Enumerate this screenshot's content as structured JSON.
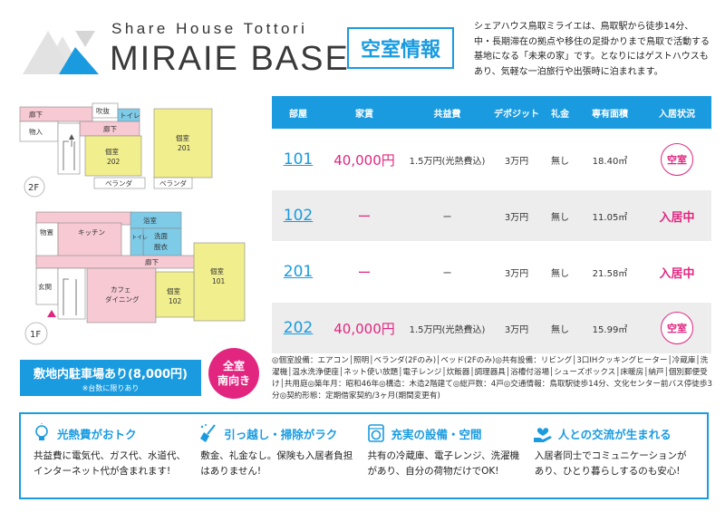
{
  "header": {
    "brand_sub": "Share House Tottori",
    "brand_main": "MIRAIE BASE",
    "vacancy_title": "空室情報",
    "intro": "シェアハウス鳥取ミライエは、鳥取駅から徒歩14分、中・長期滞在の拠点や移住の足掛かりまで鳥取で活動する基地になる「未来の家」です。となりにはゲストハウスもあり、気軽な一泊旅行や出張時に泊まれます。"
  },
  "floorplan": {
    "floor2": {
      "label": "2F",
      "rooms": [
        "廊下",
        "吹抜",
        "トイレ",
        "廊下",
        "物入",
        "個室",
        "202",
        "個室",
        "201",
        "ベランダ",
        "ベランダ"
      ]
    },
    "floor1": {
      "label": "1F",
      "rooms": [
        "廊下",
        "浴室",
        "物置",
        "キッチン",
        "洗面",
        "脱衣",
        "トイレ",
        "廊下",
        "個室",
        "101",
        "玄関",
        "カフェ",
        "ダイニング",
        "個室",
        "102"
      ]
    }
  },
  "table": {
    "headers": [
      "部屋",
      "家賃",
      "共益費",
      "デポジット",
      "礼金",
      "専有面積",
      "入居状況"
    ],
    "rows": [
      {
        "room": "101",
        "rent": "40,000円",
        "fee": "1.5万円(光熱費込)",
        "deposit": "3万円",
        "key_money": "無し",
        "area": "18.40㎡",
        "status": "空室",
        "vacant": true
      },
      {
        "room": "102",
        "rent": "ー",
        "fee": "ー",
        "deposit": "3万円",
        "key_money": "無し",
        "area": "11.05㎡",
        "status": "入居中",
        "vacant": false
      },
      {
        "room": "201",
        "rent": "ー",
        "fee": "ー",
        "deposit": "3万円",
        "key_money": "無し",
        "area": "21.58㎡",
        "status": "入居中",
        "vacant": false
      },
      {
        "room": "202",
        "rent": "40,000円",
        "fee": "1.5万円(光熱費込)",
        "deposit": "3万円",
        "key_money": "無し",
        "area": "15.99㎡",
        "status": "空室",
        "vacant": true
      }
    ]
  },
  "parking": {
    "line1": "敷地内駐車場あり(8,000円)",
    "line2": "※台数に限りあり"
  },
  "orientation": {
    "line1": "全室",
    "line2": "南向き"
  },
  "equipment": "◎個室設備：エアコン│照明│ベランダ(2Fのみ)│ベッド(2Fのみ)◎共有設備：リビング│3口IHクッキングヒーター│冷蔵庫│洗濯機│温水洗浄便座│ネット使い放題│電子レンジ│炊飯器│調理器具│浴槽付浴場│シューズボックス│床暖房│納戸│個別郵便受け│共用庭◎築年月：昭和46年◎構造：木造2階建て◎総戸数：4戸◎交通情報：鳥取駅徒歩14分、文化センター前バス停徒歩3分◎契約形態：定期借家契約/3ヶ月(期間変更有)",
  "features": [
    {
      "icon": "lightbulb-icon",
      "title": "光熱費がおトク",
      "text": "共益費に電気代、ガス代、水道代、インターネット代が含まれます!"
    },
    {
      "icon": "broom-icon",
      "title": "引っ越し・掃除がラク",
      "text": "敷金、礼金なし。保険も入居者負担はありません!"
    },
    {
      "icon": "washing-machine-icon",
      "title": "充実の設備・空間",
      "text": "共有の冷蔵庫、電子レンジ、洗濯機があり、自分の荷物だけでOK!"
    },
    {
      "icon": "heart-hands-icon",
      "title": "人との交流が生まれる",
      "text": "入居者同士でコミュニケーションがあり、ひとり暮らしするのも安心!"
    }
  ],
  "colors": {
    "accent": "#1a9be0",
    "highlight": "#e22680",
    "room_yellow": "#f1ee8e",
    "room_pink": "#f6c9d3",
    "bath_blue": "#7ecbe8"
  }
}
